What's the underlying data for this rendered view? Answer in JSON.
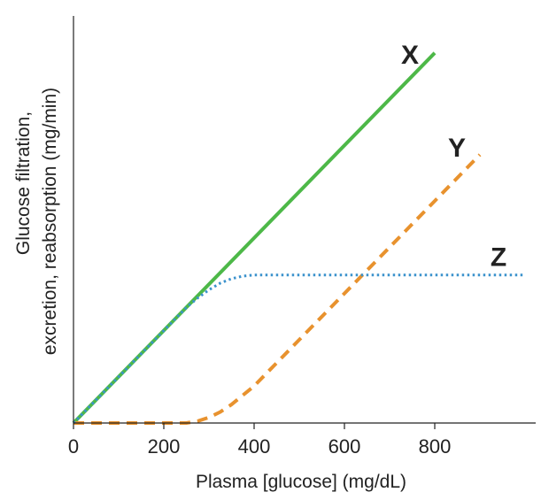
{
  "chart_data": {
    "type": "line",
    "title": "",
    "xlabel": "Plasma [glucose] (mg/dL)",
    "ylabel_lines": [
      "Glucose filtration,",
      "excretion, reabsorption (mg/min)"
    ],
    "xlim": [
      0,
      1000
    ],
    "ylim": [
      0,
      1100
    ],
    "xticks": [
      0,
      200,
      400,
      600,
      800
    ],
    "grid": false,
    "series": [
      {
        "name": "X",
        "label": "X",
        "color": "#4db848",
        "style": "solid",
        "x": [
          0,
          800
        ],
        "y": [
          0,
          1000
        ]
      },
      {
        "name": "Y",
        "label": "Y",
        "color": "#e8922e",
        "style": "dashed",
        "x": [
          0,
          250,
          275,
          300,
          325,
          350,
          375,
          400,
          500,
          600,
          700,
          800,
          900
        ],
        "y": [
          0,
          0,
          5,
          15,
          30,
          50,
          75,
          100,
          225,
          350,
          475,
          600,
          725
        ]
      },
      {
        "name": "Z",
        "label": "Z",
        "color": "#3b92cc",
        "style": "dotted",
        "x": [
          0,
          250,
          275,
          300,
          325,
          350,
          375,
          400,
          500,
          600,
          700,
          800,
          900,
          1000
        ],
        "y": [
          0,
          312,
          338,
          360,
          378,
          390,
          397,
          400,
          400,
          400,
          400,
          400,
          400,
          400
        ]
      }
    ]
  }
}
